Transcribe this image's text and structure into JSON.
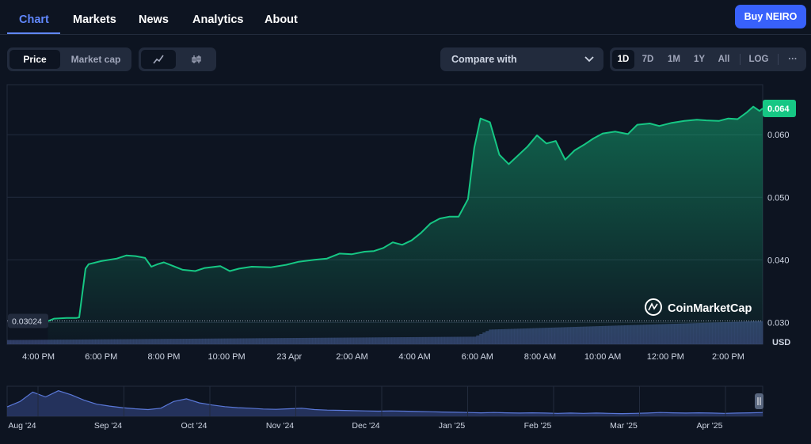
{
  "tabs": [
    {
      "label": "Chart"
    },
    {
      "label": "Markets"
    },
    {
      "label": "News"
    },
    {
      "label": "Analytics"
    },
    {
      "label": "About"
    }
  ],
  "buy_button": "Buy NEIRO",
  "toggle": {
    "price": "Price",
    "market_cap": "Market cap"
  },
  "chart_style_icons": [
    "line-chart-icon",
    "candlestick-icon"
  ],
  "compare": {
    "label": "Compare with"
  },
  "ranges": [
    "1D",
    "7D",
    "1M",
    "1Y",
    "All",
    "LOG"
  ],
  "more_label": "···",
  "watermark": "CoinMarketCap",
  "currency_label": "USD",
  "chart_data": {
    "type": "area",
    "title": "",
    "currency": "USD",
    "y_ticks": [
      0.03,
      0.04,
      0.05,
      0.06
    ],
    "y_tick_labels": [
      "0.030",
      "0.040",
      "0.050",
      "0.060"
    ],
    "ylim": [
      0.0265,
      0.068
    ],
    "current_price_label": "0.064",
    "reference_price_label": "0.03024",
    "reference_price": 0.03024,
    "x_tick_labels": [
      "4:00 PM",
      "6:00 PM",
      "8:00 PM",
      "10:00 PM",
      "23 Apr",
      "2:00 AM",
      "4:00 AM",
      "6:00 AM",
      "8:00 AM",
      "10:00 AM",
      "12:00 PM",
      "2:00 PM"
    ],
    "x_tick_hours": [
      1,
      3,
      5,
      7,
      9,
      11,
      13,
      15,
      17,
      19,
      21,
      23
    ],
    "x_range_hours": [
      0,
      24.1
    ],
    "series": [
      {
        "name": "Price",
        "points": [
          [
            1.3,
            0.0302
          ],
          [
            1.5,
            0.0306
          ],
          [
            1.9,
            0.0307
          ],
          [
            2.2,
            0.0307
          ],
          [
            2.3,
            0.0308
          ],
          [
            2.5,
            0.0386
          ],
          [
            2.6,
            0.0393
          ],
          [
            3.0,
            0.0398
          ],
          [
            3.5,
            0.0402
          ],
          [
            3.8,
            0.0407
          ],
          [
            4.1,
            0.0406
          ],
          [
            4.4,
            0.0403
          ],
          [
            4.6,
            0.0389
          ],
          [
            4.8,
            0.0393
          ],
          [
            5.0,
            0.0396
          ],
          [
            5.3,
            0.039
          ],
          [
            5.6,
            0.0384
          ],
          [
            6.0,
            0.0382
          ],
          [
            6.3,
            0.0387
          ],
          [
            6.8,
            0.039
          ],
          [
            7.1,
            0.0382
          ],
          [
            7.4,
            0.0386
          ],
          [
            7.8,
            0.0389
          ],
          [
            8.4,
            0.0388
          ],
          [
            8.9,
            0.0392
          ],
          [
            9.3,
            0.0397
          ],
          [
            9.8,
            0.04
          ],
          [
            10.2,
            0.0402
          ],
          [
            10.6,
            0.041
          ],
          [
            11.0,
            0.0409
          ],
          [
            11.4,
            0.0413
          ],
          [
            11.7,
            0.0414
          ],
          [
            12.0,
            0.0419
          ],
          [
            12.3,
            0.0428
          ],
          [
            12.6,
            0.0424
          ],
          [
            12.9,
            0.0431
          ],
          [
            13.2,
            0.0443
          ],
          [
            13.5,
            0.0458
          ],
          [
            13.8,
            0.0466
          ],
          [
            14.1,
            0.0469
          ],
          [
            14.4,
            0.0469
          ],
          [
            14.7,
            0.0497
          ],
          [
            14.9,
            0.0579
          ],
          [
            15.1,
            0.0626
          ],
          [
            15.4,
            0.062
          ],
          [
            15.7,
            0.0568
          ],
          [
            16.0,
            0.0553
          ],
          [
            16.3,
            0.0567
          ],
          [
            16.6,
            0.0581
          ],
          [
            16.9,
            0.0599
          ],
          [
            17.2,
            0.0586
          ],
          [
            17.5,
            0.059
          ],
          [
            17.8,
            0.056
          ],
          [
            18.1,
            0.0575
          ],
          [
            18.4,
            0.0584
          ],
          [
            18.7,
            0.0594
          ],
          [
            19.0,
            0.0602
          ],
          [
            19.4,
            0.0605
          ],
          [
            19.8,
            0.0601
          ],
          [
            20.1,
            0.0616
          ],
          [
            20.5,
            0.0618
          ],
          [
            20.8,
            0.0614
          ],
          [
            21.2,
            0.0619
          ],
          [
            21.6,
            0.0622
          ],
          [
            22.0,
            0.0624
          ],
          [
            22.3,
            0.0623
          ],
          [
            22.7,
            0.0622
          ],
          [
            23.0,
            0.0626
          ],
          [
            23.3,
            0.0625
          ],
          [
            23.6,
            0.0636
          ],
          [
            23.8,
            0.0645
          ],
          [
            24.0,
            0.0638
          ],
          [
            24.1,
            0.0642
          ]
        ]
      }
    ],
    "volume_levels": [
      0.18,
      0.32,
      0.62,
      0.98
    ],
    "navigator": {
      "x_tick_labels": [
        "Aug '24",
        "Sep '24",
        "Oct '24",
        "Nov '24",
        "Dec '24",
        "Jan '25",
        "Feb '25",
        "Mar '25",
        "Apr '25"
      ],
      "values": [
        0.35,
        0.55,
        0.9,
        0.72,
        0.95,
        0.8,
        0.6,
        0.45,
        0.38,
        0.32,
        0.28,
        0.25,
        0.3,
        0.55,
        0.65,
        0.5,
        0.42,
        0.36,
        0.32,
        0.3,
        0.27,
        0.26,
        0.28,
        0.3,
        0.25,
        0.23,
        0.22,
        0.21,
        0.2,
        0.19,
        0.2,
        0.19,
        0.18,
        0.17,
        0.16,
        0.15,
        0.14,
        0.13,
        0.14,
        0.13,
        0.12,
        0.13,
        0.12,
        0.11,
        0.12,
        0.11,
        0.12,
        0.11,
        0.1,
        0.11,
        0.12,
        0.14,
        0.13,
        0.12,
        0.13,
        0.12,
        0.11,
        0.12,
        0.13,
        0.14
      ]
    }
  }
}
